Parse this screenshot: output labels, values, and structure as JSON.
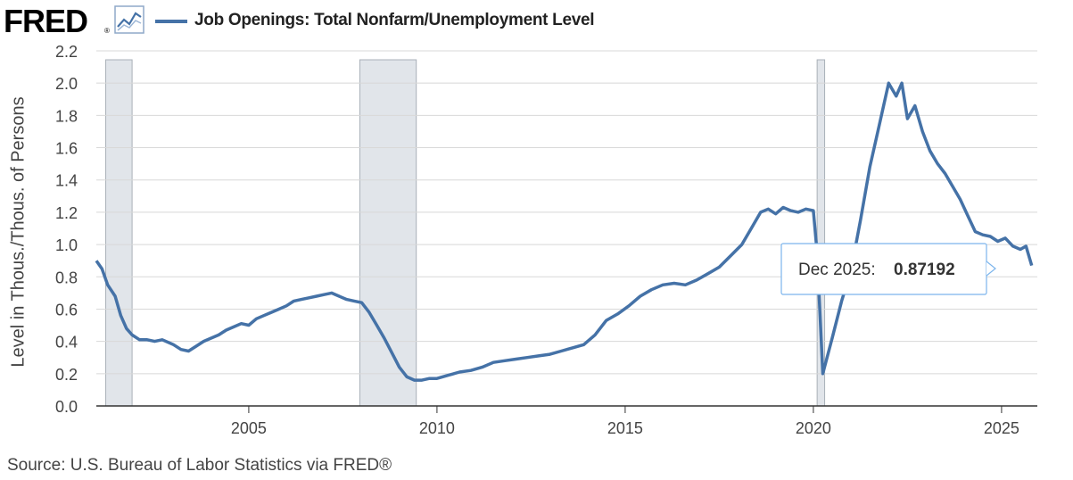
{
  "header": {
    "logo_text": "FRED",
    "logo_reg": "®",
    "legend_label": "Job Openings: Total Nonfarm/Unemployment Level",
    "icon": "trend-line-icon"
  },
  "footer": {
    "source": "Source: U.S. Bureau of Labor Statistics via FRED®"
  },
  "tooltip": {
    "date": "Dec 2025:",
    "value": "0.87192"
  },
  "colors": {
    "series": "#4572a7",
    "recession": "#e1e5ea",
    "grid": "#d8d8d8"
  },
  "chart_data": {
    "type": "line",
    "title": "",
    "xlabel": "",
    "ylabel": "Level in Thous./Thous. of Persons",
    "ylim": [
      0,
      2.2
    ],
    "xlim": [
      2000.95,
      2025.95
    ],
    "yticks": [
      "0.0",
      "0.2",
      "0.4",
      "0.6",
      "0.8",
      "1.0",
      "1.2",
      "1.4",
      "1.6",
      "1.8",
      "2.0",
      "2.2"
    ],
    "xticks": [
      "2005",
      "2010",
      "2015",
      "2020",
      "2025"
    ],
    "grid": true,
    "legend": "top-left",
    "recessions": [
      [
        2001.2,
        2001.9
      ],
      [
        2007.95,
        2009.45
      ],
      [
        2020.1,
        2020.3
      ]
    ],
    "series": [
      {
        "name": "Job Openings: Total Nonfarm/Unemployment Level",
        "x": [
          2000.95,
          2001.1,
          2001.25,
          2001.45,
          2001.6,
          2001.75,
          2001.9,
          2002.1,
          2002.3,
          2002.5,
          2002.7,
          2003.0,
          2003.2,
          2003.4,
          2003.6,
          2003.8,
          2004.0,
          2004.2,
          2004.4,
          2004.6,
          2004.8,
          2005.0,
          2005.2,
          2005.4,
          2005.6,
          2005.8,
          2006.0,
          2006.2,
          2006.4,
          2006.6,
          2006.8,
          2007.0,
          2007.2,
          2007.4,
          2007.6,
          2007.8,
          2008.0,
          2008.2,
          2008.4,
          2008.6,
          2008.8,
          2009.0,
          2009.2,
          2009.4,
          2009.6,
          2009.8,
          2010.0,
          2010.3,
          2010.6,
          2010.9,
          2011.2,
          2011.5,
          2011.8,
          2012.1,
          2012.4,
          2012.7,
          2013.0,
          2013.3,
          2013.6,
          2013.9,
          2014.2,
          2014.5,
          2014.8,
          2015.1,
          2015.4,
          2015.7,
          2016.0,
          2016.3,
          2016.6,
          2016.9,
          2017.2,
          2017.5,
          2017.8,
          2018.1,
          2018.4,
          2018.6,
          2018.8,
          2019.0,
          2019.2,
          2019.4,
          2019.6,
          2019.8,
          2020.0,
          2020.1,
          2020.25,
          2020.5,
          2020.75,
          2021.0,
          2021.25,
          2021.5,
          2021.75,
          2022.0,
          2022.2,
          2022.35,
          2022.5,
          2022.7,
          2022.9,
          2023.1,
          2023.3,
          2023.5,
          2023.7,
          2023.9,
          2024.1,
          2024.3,
          2024.5,
          2024.7,
          2024.9,
          2025.1,
          2025.3,
          2025.5,
          2025.65,
          2025.8
        ],
        "values": [
          0.9,
          0.85,
          0.75,
          0.68,
          0.56,
          0.48,
          0.44,
          0.41,
          0.41,
          0.4,
          0.41,
          0.38,
          0.35,
          0.34,
          0.37,
          0.4,
          0.42,
          0.44,
          0.47,
          0.49,
          0.51,
          0.5,
          0.54,
          0.56,
          0.58,
          0.6,
          0.62,
          0.65,
          0.66,
          0.67,
          0.68,
          0.69,
          0.7,
          0.68,
          0.66,
          0.65,
          0.64,
          0.58,
          0.5,
          0.42,
          0.33,
          0.24,
          0.18,
          0.16,
          0.16,
          0.17,
          0.17,
          0.19,
          0.21,
          0.22,
          0.24,
          0.27,
          0.28,
          0.29,
          0.3,
          0.31,
          0.32,
          0.34,
          0.36,
          0.38,
          0.44,
          0.53,
          0.57,
          0.62,
          0.68,
          0.72,
          0.75,
          0.76,
          0.75,
          0.78,
          0.82,
          0.86,
          0.93,
          1.0,
          1.12,
          1.2,
          1.22,
          1.19,
          1.23,
          1.21,
          1.2,
          1.22,
          1.21,
          0.95,
          0.2,
          0.42,
          0.65,
          0.84,
          1.15,
          1.48,
          1.74,
          2.0,
          1.92,
          2.0,
          1.78,
          1.86,
          1.7,
          1.58,
          1.5,
          1.44,
          1.36,
          1.28,
          1.18,
          1.08,
          1.06,
          1.05,
          1.02,
          1.04,
          0.99,
          0.97,
          0.99,
          0.87
        ]
      }
    ]
  }
}
